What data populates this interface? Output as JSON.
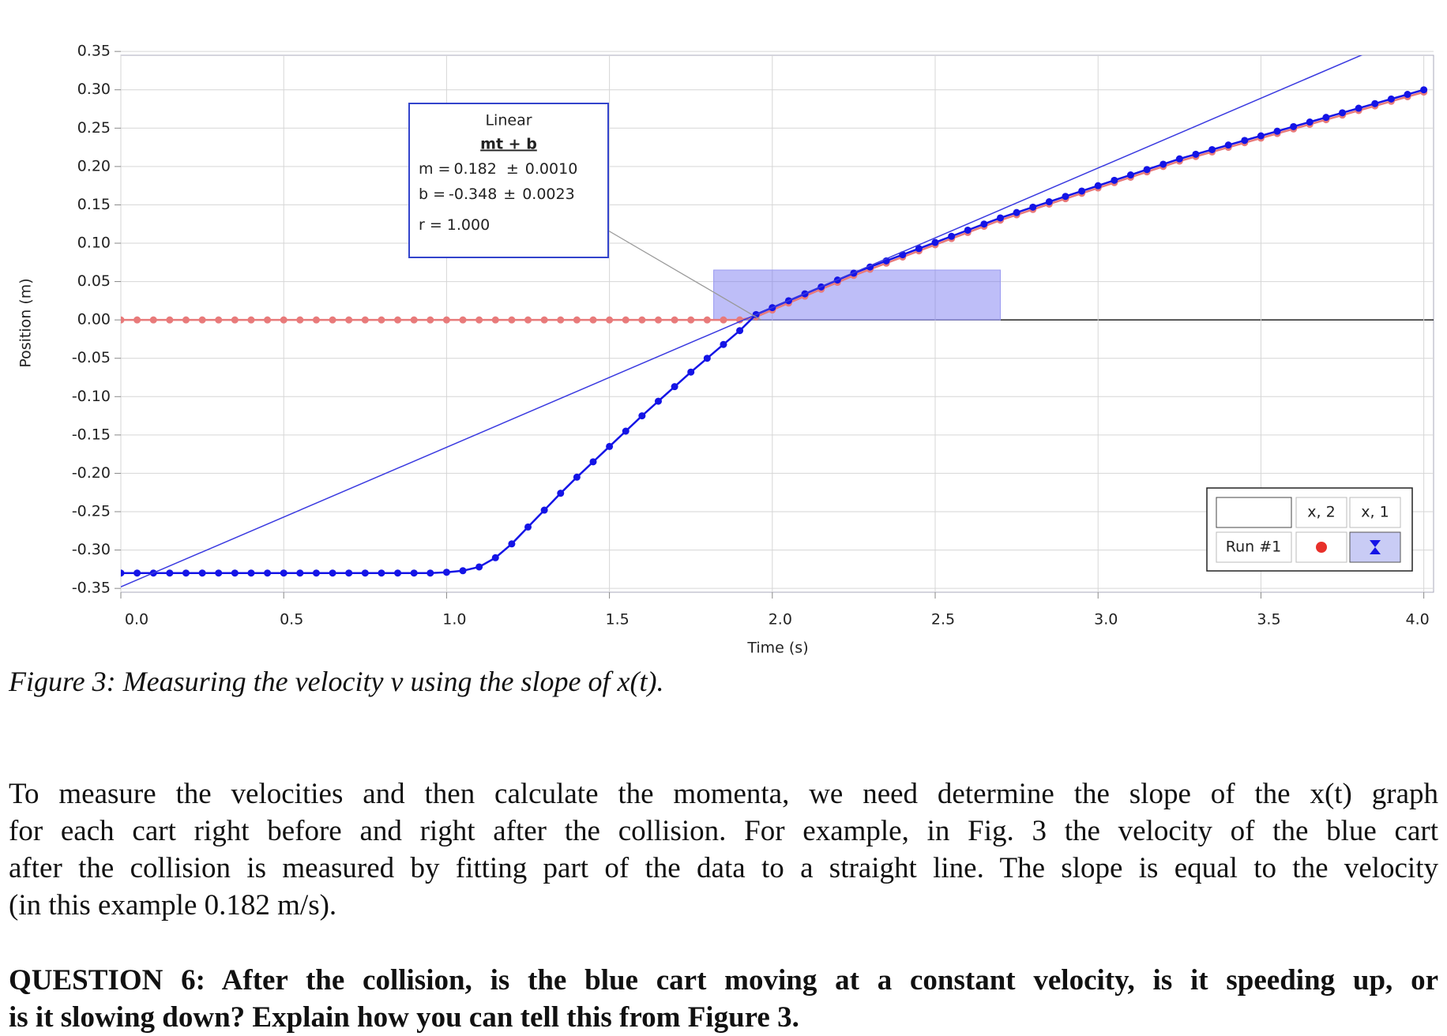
{
  "chart_data": {
    "type": "line",
    "y_label": "Position (m)",
    "x_label": "Time (s)",
    "x": [
      0,
      0.05,
      0.1,
      0.15,
      0.2,
      0.25,
      0.3,
      0.35,
      0.4,
      0.45,
      0.5,
      0.55,
      0.6,
      0.65,
      0.7,
      0.75,
      0.8,
      0.85,
      0.9,
      0.95,
      1.0,
      1.05,
      1.1,
      1.15,
      1.2,
      1.25,
      1.3,
      1.35,
      1.4,
      1.45,
      1.5,
      1.55,
      1.6,
      1.65,
      1.7,
      1.75,
      1.8,
      1.85,
      1.9,
      1.95,
      2.0,
      2.05,
      2.1,
      2.15,
      2.2,
      2.25,
      2.3,
      2.35,
      2.4,
      2.45,
      2.5,
      2.55,
      2.6,
      2.65,
      2.7,
      2.75,
      2.8,
      2.85,
      2.9,
      2.95,
      3.0,
      3.05,
      3.1,
      3.15,
      3.2,
      3.25,
      3.3,
      3.35,
      3.4,
      3.45,
      3.5,
      3.55,
      3.6,
      3.65,
      3.7,
      3.75,
      3.8,
      3.85,
      3.9,
      3.95,
      4.0
    ],
    "series": [
      {
        "name": "x, 2",
        "color": "#e87a7a",
        "values": [
          0,
          0,
          0,
          0,
          0,
          0,
          0,
          0,
          0,
          0,
          0,
          0,
          0,
          0,
          0,
          0,
          0,
          0,
          0,
          0,
          0,
          0,
          0,
          0,
          0,
          0,
          0,
          0,
          0,
          0,
          0,
          0,
          0,
          0,
          0,
          0,
          0,
          0,
          0,
          0.004,
          0.013,
          0.022,
          0.031,
          0.04,
          0.049,
          0.058,
          0.066,
          0.074,
          0.082,
          0.09,
          0.098,
          0.106,
          0.114,
          0.122,
          0.13,
          0.137,
          0.144,
          0.151,
          0.158,
          0.165,
          0.172,
          0.179,
          0.186,
          0.193,
          0.2,
          0.207,
          0.213,
          0.219,
          0.225,
          0.231,
          0.237,
          0.243,
          0.249,
          0.255,
          0.261,
          0.267,
          0.273,
          0.279,
          0.285,
          0.291,
          0.297
        ]
      },
      {
        "name": "x, 1",
        "color": "#1414e6",
        "values": [
          -0.33,
          -0.33,
          -0.33,
          -0.33,
          -0.33,
          -0.33,
          -0.33,
          -0.33,
          -0.33,
          -0.33,
          -0.33,
          -0.33,
          -0.33,
          -0.33,
          -0.33,
          -0.33,
          -0.33,
          -0.33,
          -0.33,
          -0.33,
          -0.329,
          -0.327,
          -0.322,
          -0.31,
          -0.292,
          -0.27,
          -0.248,
          -0.226,
          -0.205,
          -0.185,
          -0.165,
          -0.145,
          -0.125,
          -0.106,
          -0.087,
          -0.068,
          -0.05,
          -0.032,
          -0.014,
          0.007,
          0.016,
          0.025,
          0.034,
          0.043,
          0.052,
          0.061,
          0.069,
          0.077,
          0.085,
          0.093,
          0.101,
          0.109,
          0.117,
          0.125,
          0.133,
          0.14,
          0.147,
          0.154,
          0.161,
          0.168,
          0.175,
          0.182,
          0.189,
          0.196,
          0.203,
          0.21,
          0.216,
          0.222,
          0.228,
          0.234,
          0.24,
          0.246,
          0.252,
          0.258,
          0.264,
          0.27,
          0.276,
          0.282,
          0.288,
          0.294,
          0.3
        ]
      }
    ],
    "xlim": [
      0,
      4.03
    ],
    "ylim": [
      -0.355,
      0.345
    ],
    "xticks": [
      {
        "value": 0,
        "label": "0.0"
      },
      0.5,
      {
        "value": 1,
        "label": "1.0"
      },
      1.5,
      {
        "value": 2,
        "label": "2.0"
      },
      2.5,
      {
        "value": 3,
        "label": "3.0"
      },
      3.5,
      {
        "value": 4,
        "label": "4.0"
      }
    ],
    "yticks": [
      {
        "value": -0.35,
        "label": "-0.35"
      },
      {
        "value": -0.3,
        "label": "-0.30"
      },
      -0.25,
      {
        "value": -0.2,
        "label": "-0.20"
      },
      -0.15,
      {
        "value": -0.1,
        "label": "-0.10"
      },
      -0.05,
      {
        "value": 0,
        "label": "0.00"
      },
      0.05,
      {
        "value": 0.1,
        "label": "0.10"
      },
      0.15,
      {
        "value": 0.2,
        "label": "0.20"
      },
      0.25,
      {
        "value": 0.3,
        "label": "0.30"
      },
      0.35
    ],
    "grid": true,
    "legend_row_label": "Run #1",
    "fit": {
      "title": "Linear",
      "formula": "mt + b",
      "pm": "±",
      "m_label": "m =",
      "m": 0.182,
      "m_err": {
        "value": 0.001,
        "label": "0.0010"
      },
      "b_label": "b =",
      "b": -0.348,
      "b_err": 0.0023,
      "r_label": "r =",
      "r": {
        "value": 1,
        "label": "1.000"
      },
      "color": "#3a3ae0",
      "range_t": [
        1.82,
        2.7
      ],
      "range_x": [
        0,
        0.065
      ]
    }
  },
  "caption": "Figure 3: Measuring the velocity v using the slope of x(t).",
  "paragraph": [
    "To measure the velocities and then calculate the momenta, we need determine the slope of the x(t) graph",
    "for each cart right before and right after the collision.  For example, in Fig. 3 the velocity of the blue cart",
    "after the collision is measured by fitting part of the data to a straight line.  The slope is equal to the velocity",
    "(in this example 0.182 m/s)."
  ],
  "question": [
    "QUESTION 6:  After the collision, is the blue cart moving at a constant velocity, is it speeding up, or",
    "is it slowing down?  Explain how you can tell this from Figure 3."
  ]
}
